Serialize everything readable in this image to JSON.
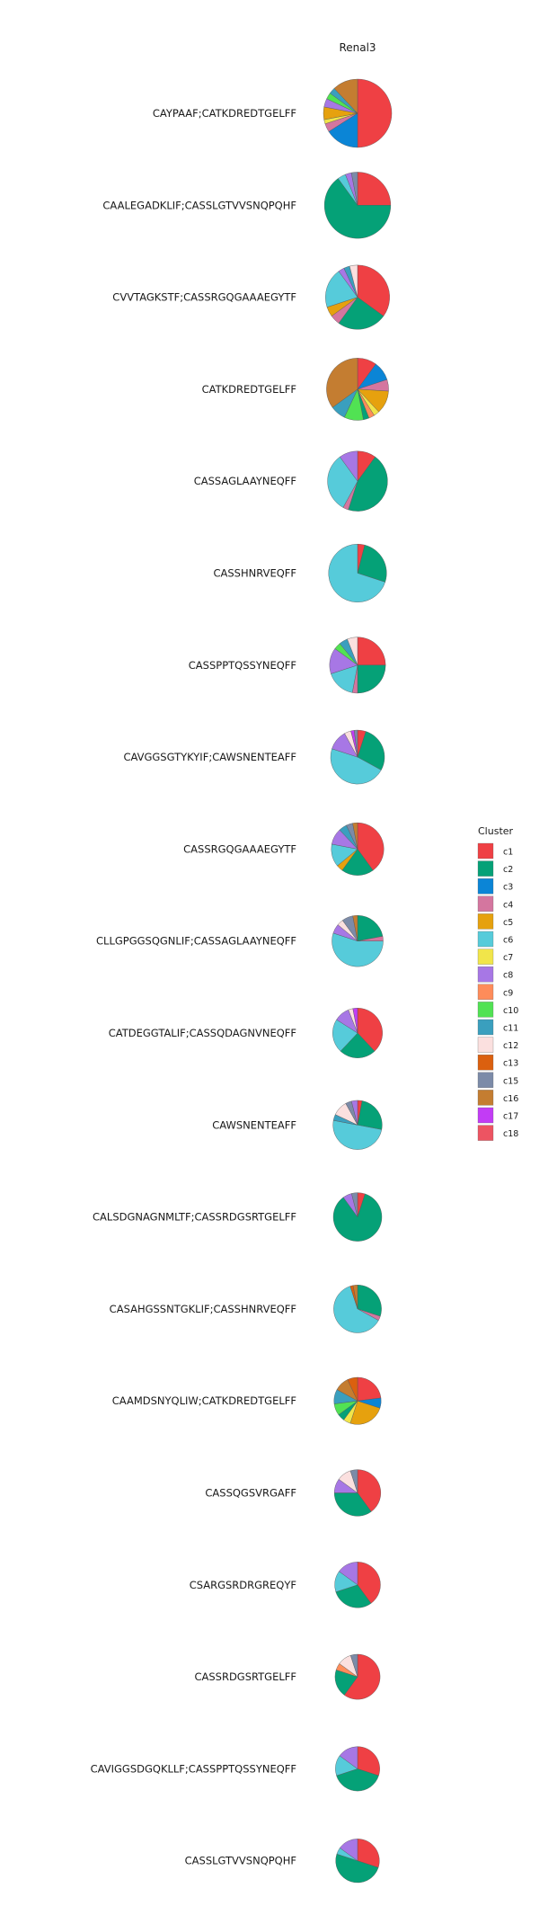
{
  "chart_data": {
    "type": "pie",
    "title": "",
    "facet_title": "Renal3",
    "legend_title": "Cluster",
    "legend_position": "right",
    "clusters": [
      {
        "name": "c1",
        "color": "#EF4044"
      },
      {
        "name": "c2",
        "color": "#05A177"
      },
      {
        "name": "c3",
        "color": "#0B85D6"
      },
      {
        "name": "c4",
        "color": "#D4769F"
      },
      {
        "name": "c5",
        "color": "#E6A10E"
      },
      {
        "name": "c6",
        "color": "#56CBDA"
      },
      {
        "name": "c7",
        "color": "#F1E54A"
      },
      {
        "name": "c8",
        "color": "#A777E5"
      },
      {
        "name": "c9",
        "color": "#FE8C5A"
      },
      {
        "name": "c10",
        "color": "#51E253"
      },
      {
        "name": "c11",
        "color": "#3A9FBE"
      },
      {
        "name": "c12",
        "color": "#FBE0DF"
      },
      {
        "name": "c13",
        "color": "#DB600F"
      },
      {
        "name": "c15",
        "color": "#7C8BA8"
      },
      {
        "name": "c16",
        "color": "#C47D31"
      },
      {
        "name": "c17",
        "color": "#C23CF5"
      },
      {
        "name": "c18",
        "color": "#ED5462"
      }
    ],
    "rows": [
      {
        "label": "CAYPAAF;CATKDREDTGELFF",
        "size": 1.0,
        "slices": [
          [
            "c1",
            0.5
          ],
          [
            "c3",
            0.16
          ],
          [
            "c4",
            0.04
          ],
          [
            "c7",
            0.02
          ],
          [
            "c5",
            0.06
          ],
          [
            "c8",
            0.04
          ],
          [
            "c10",
            0.03
          ],
          [
            "c11",
            0.03
          ],
          [
            "c16",
            0.12
          ]
        ]
      },
      {
        "label": "CAALEGADKLIF;CASSLGTVVSNQPQHF",
        "size": 0.97,
        "slices": [
          [
            "c1",
            0.25
          ],
          [
            "c2",
            0.65
          ],
          [
            "c6",
            0.04
          ],
          [
            "c8",
            0.03
          ],
          [
            "c15",
            0.03
          ]
        ]
      },
      {
        "label": "CVVTAGKSTF;CASSRGQGAAAEGYTF",
        "size": 0.94,
        "slices": [
          [
            "c1",
            0.35
          ],
          [
            "c2",
            0.25
          ],
          [
            "c4",
            0.05
          ],
          [
            "c5",
            0.05
          ],
          [
            "c6",
            0.2
          ],
          [
            "c8",
            0.03
          ],
          [
            "c11",
            0.03
          ],
          [
            "c12",
            0.04
          ]
        ]
      },
      {
        "label": "CATKDREDTGELFF",
        "size": 0.91,
        "slices": [
          [
            "c1",
            0.1
          ],
          [
            "c3",
            0.1
          ],
          [
            "c4",
            0.06
          ],
          [
            "c5",
            0.12
          ],
          [
            "c7",
            0.03
          ],
          [
            "c9",
            0.03
          ],
          [
            "c2",
            0.03
          ],
          [
            "c10",
            0.1
          ],
          [
            "c11",
            0.08
          ],
          [
            "c16",
            0.35
          ]
        ]
      },
      {
        "label": "CASSAGLAAYNEQFF",
        "size": 0.88,
        "slices": [
          [
            "c1",
            0.1
          ],
          [
            "c2",
            0.45
          ],
          [
            "c4",
            0.03
          ],
          [
            "c6",
            0.32
          ],
          [
            "c8",
            0.1
          ]
        ]
      },
      {
        "label": "CASSHNRVEQFF",
        "size": 0.85,
        "slices": [
          [
            "c1",
            0.04
          ],
          [
            "c2",
            0.26
          ],
          [
            "c6",
            0.7
          ]
        ]
      },
      {
        "label": "CASSPPTQSSYNEQFF",
        "size": 0.82,
        "slices": [
          [
            "c1",
            0.25
          ],
          [
            "c2",
            0.25
          ],
          [
            "c4",
            0.03
          ],
          [
            "c6",
            0.17
          ],
          [
            "c8",
            0.15
          ],
          [
            "c10",
            0.04
          ],
          [
            "c11",
            0.05
          ],
          [
            "c12",
            0.06
          ]
        ]
      },
      {
        "label": "CAVGGSGTYKYIF;CAWSNENTEAFF",
        "size": 0.79,
        "slices": [
          [
            "c1",
            0.05
          ],
          [
            "c2",
            0.28
          ],
          [
            "c6",
            0.47
          ],
          [
            "c8",
            0.12
          ],
          [
            "c12",
            0.04
          ],
          [
            "c17",
            0.02
          ],
          [
            "c15",
            0.02
          ]
        ]
      },
      {
        "label": "CASSRGQGAAAEGYTF",
        "size": 0.77,
        "slices": [
          [
            "c1",
            0.4
          ],
          [
            "c2",
            0.2
          ],
          [
            "c5",
            0.04
          ],
          [
            "c6",
            0.14
          ],
          [
            "c8",
            0.1
          ],
          [
            "c11",
            0.05
          ],
          [
            "c15",
            0.04
          ],
          [
            "c16",
            0.03
          ]
        ]
      },
      {
        "label": "CLLGPGGSQGNLIF;CASSAGLAAYNEQFF",
        "size": 0.75,
        "slices": [
          [
            "c2",
            0.22
          ],
          [
            "c4",
            0.03
          ],
          [
            "c6",
            0.55
          ],
          [
            "c8",
            0.06
          ],
          [
            "c12",
            0.04
          ],
          [
            "c15",
            0.07
          ],
          [
            "c16",
            0.03
          ]
        ]
      },
      {
        "label": "CATDEGGTALIF;CASSQDAGNVNEQFF",
        "size": 0.73,
        "slices": [
          [
            "c1",
            0.38
          ],
          [
            "c2",
            0.24
          ],
          [
            "c6",
            0.22
          ],
          [
            "c8",
            0.1
          ],
          [
            "c12",
            0.03
          ],
          [
            "c17",
            0.03
          ]
        ]
      },
      {
        "label": "CAWSNENTEAFF",
        "size": 0.72,
        "slices": [
          [
            "c1",
            0.03
          ],
          [
            "c2",
            0.25
          ],
          [
            "c6",
            0.5
          ],
          [
            "c11",
            0.04
          ],
          [
            "c12",
            0.1
          ],
          [
            "c15",
            0.04
          ],
          [
            "c8",
            0.04
          ]
        ]
      },
      {
        "label": "CALSDGNAGNMLTF;CASSRDGSRTGELFF",
        "size": 0.71,
        "slices": [
          [
            "c1",
            0.05
          ],
          [
            "c2",
            0.85
          ],
          [
            "c8",
            0.06
          ],
          [
            "c15",
            0.04
          ]
        ]
      },
      {
        "label": "CASAHGSSNTGKLIF;CASSHNRVEQFF",
        "size": 0.7,
        "slices": [
          [
            "c2",
            0.3
          ],
          [
            "c4",
            0.03
          ],
          [
            "c6",
            0.62
          ],
          [
            "c13",
            0.02
          ],
          [
            "c16",
            0.03
          ]
        ]
      },
      {
        "label": "CAAMDSNYQLIW;CATKDREDTGELFF",
        "size": 0.69,
        "slices": [
          [
            "c1",
            0.23
          ],
          [
            "c3",
            0.07
          ],
          [
            "c5",
            0.25
          ],
          [
            "c7",
            0.05
          ],
          [
            "c2",
            0.05
          ],
          [
            "c10",
            0.08
          ],
          [
            "c11",
            0.1
          ],
          [
            "c16",
            0.1
          ],
          [
            "c13",
            0.07
          ]
        ]
      },
      {
        "label": "CASSQGSVRGAFF",
        "size": 0.68,
        "slices": [
          [
            "c1",
            0.4
          ],
          [
            "c2",
            0.35
          ],
          [
            "c8",
            0.1
          ],
          [
            "c12",
            0.1
          ],
          [
            "c15",
            0.05
          ]
        ]
      },
      {
        "label": "CSARGSRDRGREQYF",
        "size": 0.67,
        "slices": [
          [
            "c1",
            0.4
          ],
          [
            "c2",
            0.3
          ],
          [
            "c6",
            0.15
          ],
          [
            "c8",
            0.15
          ]
        ]
      },
      {
        "label": "CASSRDGSRTGELFF",
        "size": 0.66,
        "slices": [
          [
            "c1",
            0.6
          ],
          [
            "c2",
            0.2
          ],
          [
            "c9",
            0.05
          ],
          [
            "c12",
            0.1
          ],
          [
            "c15",
            0.05
          ]
        ]
      },
      {
        "label": "CAVIGGSDGQKLLF;CASSPPTQSSYNEQFF",
        "size": 0.65,
        "slices": [
          [
            "c1",
            0.3
          ],
          [
            "c2",
            0.4
          ],
          [
            "c6",
            0.15
          ],
          [
            "c8",
            0.15
          ]
        ]
      },
      {
        "label": "CASSLGTVVSNQPQHF",
        "size": 0.64,
        "slices": [
          [
            "c1",
            0.3
          ],
          [
            "c2",
            0.5
          ],
          [
            "c6",
            0.05
          ],
          [
            "c8",
            0.15
          ]
        ]
      }
    ]
  }
}
